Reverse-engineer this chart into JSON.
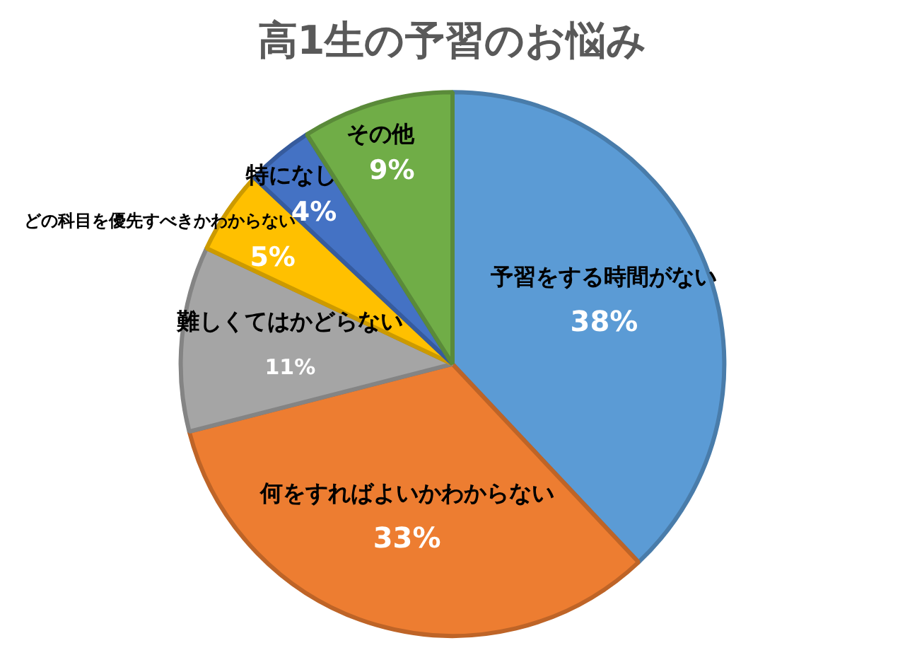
{
  "chart_data": {
    "type": "pie",
    "title": "高1生の予習のお悩み",
    "categories": [
      "予習をする時間がない",
      "何をすればよいかわからない",
      "難しくてはかどらない",
      "どの科目を優先すべきかわからない",
      "特になし",
      "その他"
    ],
    "values": [
      38,
      33,
      11,
      5,
      4,
      9
    ],
    "value_labels": [
      "38%",
      "33%",
      "11%",
      "5%",
      "4%",
      "9%"
    ],
    "colors": [
      "#5b9bd5",
      "#ed7d31",
      "#a5a5a5",
      "#ffc000",
      "#4472c4",
      "#70ad47"
    ],
    "legend": false
  }
}
